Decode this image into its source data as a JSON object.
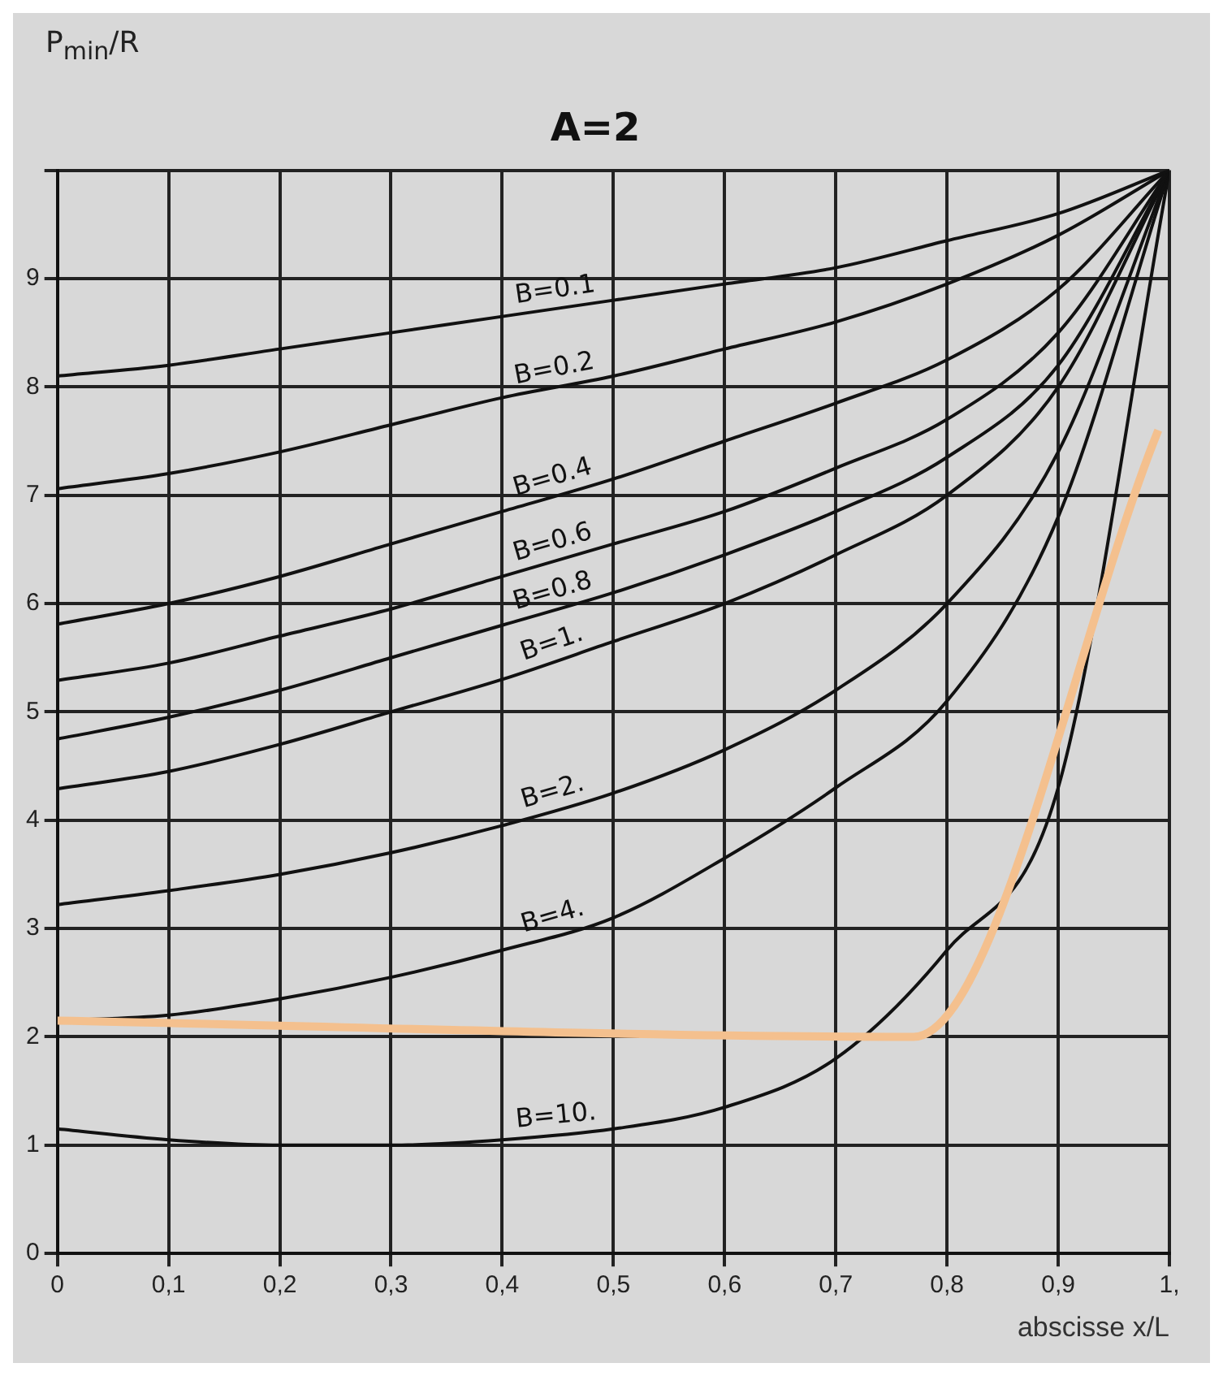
{
  "chart_data": {
    "type": "line",
    "title": "A=2",
    "xlabel": "abscisse x/L",
    "ylabel": "P$_{min}$/R",
    "x": [
      0,
      0.1,
      0.2,
      0.3,
      0.4,
      0.5,
      0.6,
      0.7,
      0.8,
      0.9,
      1
    ],
    "xlim": [
      0,
      1
    ],
    "xticks": [
      0,
      {
        "value": 0.1,
        "label": "0,1"
      },
      {
        "value": 0.2,
        "label": "0,2"
      },
      {
        "value": 0.3,
        "label": "0,3"
      },
      {
        "value": 0.4,
        "label": "0,4"
      },
      {
        "value": 0.5,
        "label": "0,5"
      },
      {
        "value": 0.6,
        "label": "0,6"
      },
      {
        "value": 0.7,
        "label": "0,7"
      },
      {
        "value": 0.8,
        "label": "0,8"
      },
      {
        "value": 0.9,
        "label": "0,9"
      },
      {
        "value": 1,
        "label": "1,"
      }
    ],
    "ylim": [
      0,
      10
    ],
    "yticks": [
      0,
      1,
      2,
      3,
      4,
      5,
      6,
      7,
      8,
      9,
      {
        "value": 10,
        "label": null
      }
    ],
    "grid": true,
    "legend": false,
    "marker": "none",
    "line_style": "solid",
    "series": [
      {
        "name": "B=0.1",
        "color": "#111111",
        "values": [
          8.1,
          8.2,
          8.35,
          8.5,
          8.65,
          8.8,
          8.95,
          9.1,
          9.35,
          9.6,
          10
        ]
      },
      {
        "name": "B=0.2",
        "color": "#111111",
        "values": [
          7.06,
          7.2,
          7.4,
          7.65,
          7.9,
          8.1,
          8.35,
          8.6,
          8.95,
          9.4,
          10
        ]
      },
      {
        "name": "B=0.4",
        "color": "#111111",
        "values": [
          5.81,
          6.0,
          6.25,
          6.55,
          6.85,
          7.15,
          7.5,
          7.85,
          8.25,
          8.9,
          10
        ]
      },
      {
        "name": "B=0.6",
        "color": "#111111",
        "values": [
          5.29,
          5.45,
          5.7,
          5.95,
          6.25,
          6.55,
          6.85,
          7.25,
          7.7,
          8.5,
          10
        ]
      },
      {
        "name": "B=0.8",
        "color": "#111111",
        "values": [
          4.75,
          4.95,
          5.2,
          5.5,
          5.8,
          6.1,
          6.45,
          6.85,
          7.35,
          8.2,
          10
        ]
      },
      {
        "name": "B=1.",
        "color": "#111111",
        "values": [
          4.29,
          4.45,
          4.7,
          5.0,
          5.3,
          5.65,
          6.0,
          6.45,
          7.0,
          8.0,
          10
        ]
      },
      {
        "name": "B=2.",
        "color": "#111111",
        "values": [
          3.22,
          3.35,
          3.5,
          3.7,
          3.95,
          4.25,
          4.65,
          5.2,
          6.0,
          7.4,
          10
        ]
      },
      {
        "name": "B=4.",
        "color": "#111111",
        "values": [
          2.15,
          2.2,
          2.35,
          2.55,
          2.8,
          3.1,
          3.65,
          4.3,
          5.1,
          6.8,
          10
        ]
      },
      {
        "name": "B=10.",
        "color": "#111111",
        "values": [
          1.15,
          1.05,
          1.0,
          1.0,
          1.05,
          1.15,
          1.35,
          1.8,
          2.8,
          4.3,
          10
        ]
      },
      {
        "color": "#f4c08e",
        "x": [
          0,
          0.77,
          0.99
        ],
        "values": [
          2.15,
          2.0,
          7.6
        ]
      }
    ]
  }
}
